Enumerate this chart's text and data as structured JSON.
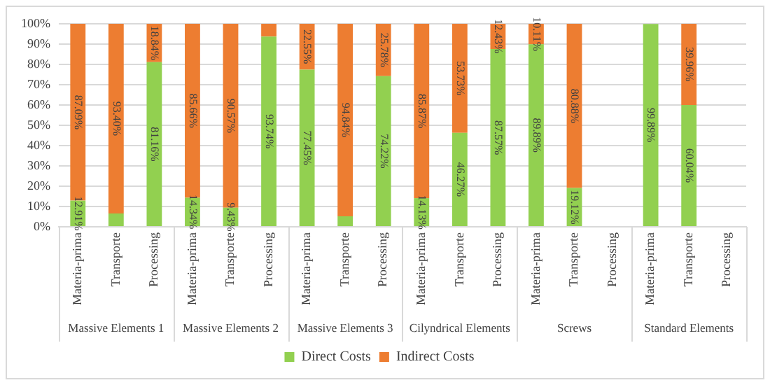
{
  "chart_data": {
    "type": "bar",
    "stacked": true,
    "categories": [
      "Materia-prima",
      "Transporte",
      "Processing",
      "Materia-prima",
      "Transporte",
      "Processing",
      "Materia-prima",
      "Transporte",
      "Processing",
      "Materia-prima",
      "Transporte",
      "Processing",
      "Materia-prima",
      "Transporte",
      "Processing",
      "Materia-prima",
      "Transporte",
      "Processing"
    ],
    "annotations": [
      "Massive Elements 1",
      "Massive Elements 2",
      "Massive Elements 3",
      "Cilyndrical Elements",
      "Screws",
      "Standard Elements"
    ],
    "series": [
      {
        "name": "Direct Costs",
        "color": "#92d050",
        "values": [
          12.91,
          6.6,
          81.16,
          14.34,
          9.43,
          93.74,
          77.45,
          5.2,
          74.22,
          14.13,
          46.27,
          87.57,
          89.89,
          19.12,
          null,
          99.89,
          60.04,
          null
        ],
        "value_labels": [
          "12.91%",
          null,
          "81.16%",
          "14.34%",
          "9.43%",
          "93.74%",
          "77.45%",
          null,
          "74.22%",
          "14.13%",
          "46.27%",
          "87.57%",
          "89.89%",
          "19.12%",
          null,
          "99.89%",
          "60.04%",
          null
        ]
      },
      {
        "name": "Indirect Costs",
        "color": "#ed7d31",
        "values": [
          87.09,
          93.4,
          18.84,
          85.66,
          90.57,
          6.3,
          22.55,
          94.84,
          25.78,
          85.87,
          53.73,
          12.43,
          10.11,
          80.88,
          null,
          null,
          39.96,
          null
        ],
        "value_labels": [
          "87.09%",
          "93.40%",
          "18.84%",
          "85.66%",
          "90.57%",
          null,
          "22.55%",
          "94.84%",
          "25.78%",
          "85.87%",
          "53.73%",
          "12.43%",
          "10.11%",
          "80.88%",
          null,
          null,
          "39.96%",
          null
        ]
      }
    ],
    "ylim": [
      0,
      100
    ],
    "yticks": [
      {
        "value": 0,
        "label": "0%"
      },
      {
        "value": 10,
        "label": "10%"
      },
      {
        "value": 20,
        "label": "20%"
      },
      {
        "value": 30,
        "label": "30%"
      },
      {
        "value": 40,
        "label": "40%"
      },
      {
        "value": 50,
        "label": "50%"
      },
      {
        "value": 60,
        "label": "60%"
      },
      {
        "value": 70,
        "label": "70%"
      },
      {
        "value": 80,
        "label": "80%"
      },
      {
        "value": 90,
        "label": "90%"
      },
      {
        "value": 100,
        "label": "100%"
      }
    ],
    "grid": "y",
    "legend": "bottom"
  }
}
